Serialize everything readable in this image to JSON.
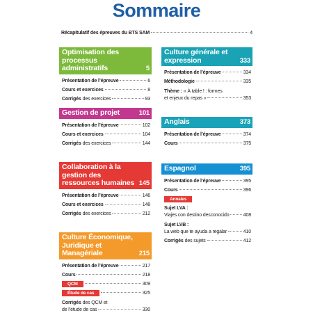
{
  "title": "Sommaire",
  "intro": {
    "text": "Récapitulatif des épreuves du BTS SAM",
    "page": "4"
  },
  "sections": [
    {
      "header": "Optimisation des processus administratifs",
      "page": "5",
      "color": "#7dba3c",
      "entries": [
        {
          "bold": "Présentation de l’épreuve",
          "page": "6"
        },
        {
          "bold": "Cours et exercices",
          "page": "8"
        },
        {
          "bold": "Corrigés",
          "text": "des exercices",
          "page": "93"
        }
      ]
    },
    {
      "header": "Gestion de projet",
      "page": "101",
      "color": "#c2388f",
      "entries": [
        {
          "bold": "Présentation de l’épreuve",
          "page": "102"
        },
        {
          "bold": "Cours et exercices",
          "page": "104"
        },
        {
          "bold": "Corrigés",
          "text": "des exercices",
          "page": "144"
        }
      ]
    },
    {
      "header": "Collaboration à la gestion des ressources humaines",
      "page": "145",
      "color": "#e53935",
      "entries": [
        {
          "bold": "Présentation de l’épreuve",
          "page": "146"
        },
        {
          "bold": "Cours et exercices",
          "page": "148"
        },
        {
          "bold": "Corrigés",
          "text": "des exercices",
          "page": "212"
        }
      ]
    },
    {
      "header": "Culture Économique, Juridique et Managériale",
      "page": "215",
      "color": "#f39a2b",
      "entries": [
        {
          "bold": "Présentation de l’épreuve",
          "page": "217"
        },
        {
          "bold": "Cours",
          "page": "218"
        },
        {
          "tag": "QCM",
          "page": "309"
        },
        {
          "tag": "Étude de cas",
          "page": "325"
        },
        {
          "bold": "Corrigés",
          "text": "des QCM et",
          "line2": "de l’étude de cas",
          "page": "330"
        }
      ]
    },
    {
      "header": "Culture générale et expression",
      "page": "333",
      "color": "#19a3b5",
      "entries": [
        {
          "bold": "Présentation de l’épreuve",
          "page": "334"
        },
        {
          "bold": "Méthodologie",
          "page": "335"
        },
        {
          "bold": "Thème :",
          "text": "« À table ! : formes",
          "line2": "et enjeux du repas »",
          "page": "353"
        }
      ]
    },
    {
      "header": "Anglais",
      "page": "373",
      "color": "#1aa3b8",
      "entries": [
        {
          "bold": "Présentation de l’épreuve",
          "page": "374"
        },
        {
          "bold": "Cours",
          "page": "375"
        }
      ]
    },
    {
      "header": "Espagnol",
      "page": "395",
      "color": "#1590d2",
      "entries": [
        {
          "bold": "Présentation de l’épreuve",
          "page": "395"
        },
        {
          "bold": "Cours",
          "page": "396"
        },
        {
          "tag": "Annales"
        },
        {
          "bold": "Sujet LVA :",
          "line2": "Viajes con destino desconocido",
          "page": "408"
        },
        {
          "bold": "Sujet LVB :",
          "line2": "La web que te ayuda a regalar",
          "page": "410"
        },
        {
          "bold": "Corrigés",
          "text": "des sujets",
          "page": "412"
        }
      ]
    }
  ]
}
